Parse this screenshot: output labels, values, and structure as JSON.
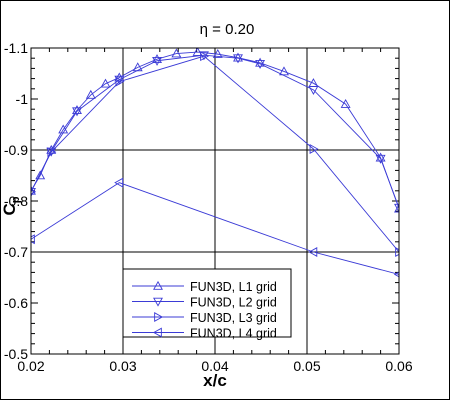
{
  "chart_data": {
    "type": "line",
    "title": "η = 0.20",
    "xlabel": "x/c",
    "ylabel": "C",
    "ylabel_subscript": "p",
    "xlim": [
      0.02,
      0.06
    ],
    "ylim": [
      -0.5,
      -1.1
    ],
    "y_axis_reversed": true,
    "x_ticks": [
      0.02,
      0.03,
      0.04,
      0.05,
      0.06
    ],
    "y_ticks": [
      -0.5,
      -0.6,
      -0.7,
      -0.8,
      -0.9,
      -1.0,
      -1.1
    ],
    "x_tick_labels": [
      "0.02",
      "0.03",
      "0.04",
      "0.05",
      "0.06"
    ],
    "y_tick_labels": [
      "-0.5",
      "-0.6",
      "-0.7",
      "-0.8",
      "-0.9",
      "-1",
      "-1.1"
    ],
    "grid": true,
    "grid_major_x": [
      0.03,
      0.04,
      0.05
    ],
    "grid_major_y": [
      -0.7,
      -0.9
    ],
    "legend_position": "bottom-center",
    "line_color": "#3b3bd6",
    "series": [
      {
        "name": "FUN3D, L1 grid",
        "marker": "triangle-up",
        "x": [
          0.02,
          0.021,
          0.0222,
          0.0235,
          0.025,
          0.0265,
          0.0281,
          0.0296,
          0.0316,
          0.0337,
          0.0358,
          0.0381,
          0.0403,
          0.0425,
          0.0449,
          0.0475,
          0.0507,
          0.0542,
          0.058,
          0.06
        ],
        "y": [
          -0.82,
          -0.85,
          -0.9,
          -0.94,
          -0.978,
          -1.008,
          -1.03,
          -1.042,
          -1.062,
          -1.078,
          -1.089,
          -1.092,
          -1.088,
          -1.081,
          -1.071,
          -1.054,
          -1.031,
          -0.99,
          -0.885,
          -0.785
        ]
      },
      {
        "name": "FUN3D, L2 grid",
        "marker": "triangle-down",
        "x": [
          0.02,
          0.0222,
          0.025,
          0.0296,
          0.0337,
          0.0388,
          0.0425,
          0.0449,
          0.0507,
          0.058,
          0.06
        ],
        "y": [
          -0.818,
          -0.897,
          -0.976,
          -1.038,
          -1.075,
          -1.086,
          -1.08,
          -1.069,
          -1.018,
          -0.883,
          -0.787
        ]
      },
      {
        "name": "FUN3D, L3 grid",
        "marker": "triangle-right",
        "x": [
          0.02,
          0.0222,
          0.0296,
          0.0388,
          0.0507,
          0.06
        ],
        "y": [
          -0.818,
          -0.896,
          -1.034,
          -1.084,
          -0.902,
          -0.7
        ]
      },
      {
        "name": "FUN3D, L4 grid",
        "marker": "triangle-left",
        "x": [
          0.02,
          0.0296,
          0.0507,
          0.06
        ],
        "y": [
          -0.725,
          -0.836,
          -0.7,
          -0.656
        ]
      }
    ]
  }
}
